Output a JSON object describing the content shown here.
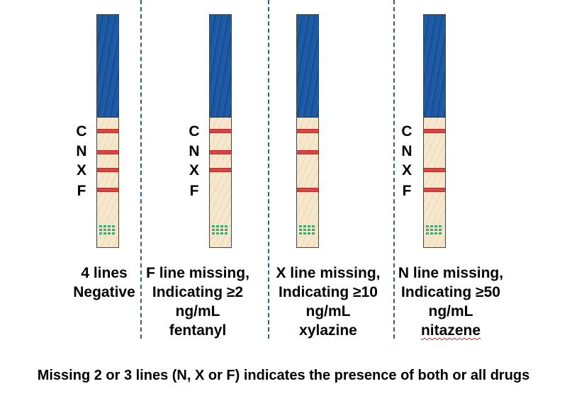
{
  "letters": [
    "C",
    "N",
    "X",
    "F"
  ],
  "strips": [
    {
      "id": "negative",
      "bands_present": [
        "C",
        "N",
        "X",
        "F"
      ],
      "caption": [
        "4 lines",
        "Negative"
      ]
    },
    {
      "id": "fentanyl",
      "bands_present": [
        "C",
        "N",
        "X"
      ],
      "caption": [
        "F line missing,",
        "Indicating ≥2",
        "ng/mL",
        "fentanyl"
      ]
    },
    {
      "id": "xylazine",
      "bands_present": [
        "C",
        "N",
        "F"
      ],
      "caption": [
        "X line missing,",
        "Indicating ≥10",
        "ng/mL",
        "xylazine"
      ]
    },
    {
      "id": "nitazene",
      "bands_present": [
        "C",
        "X",
        "F"
      ],
      "caption": [
        "N line missing,",
        "Indicating ≥50",
        "ng/mL",
        "nitazene"
      ]
    }
  ],
  "footer": "Missing 2 or 3 lines (N, X or F) indicates the presence of both or all drugs",
  "colors": {
    "strip_top": "#1d5aa6",
    "strip_body": "#f5e6cc",
    "band": "#e0433f",
    "well": "#3aa974",
    "divider": "#2e5f8a"
  }
}
